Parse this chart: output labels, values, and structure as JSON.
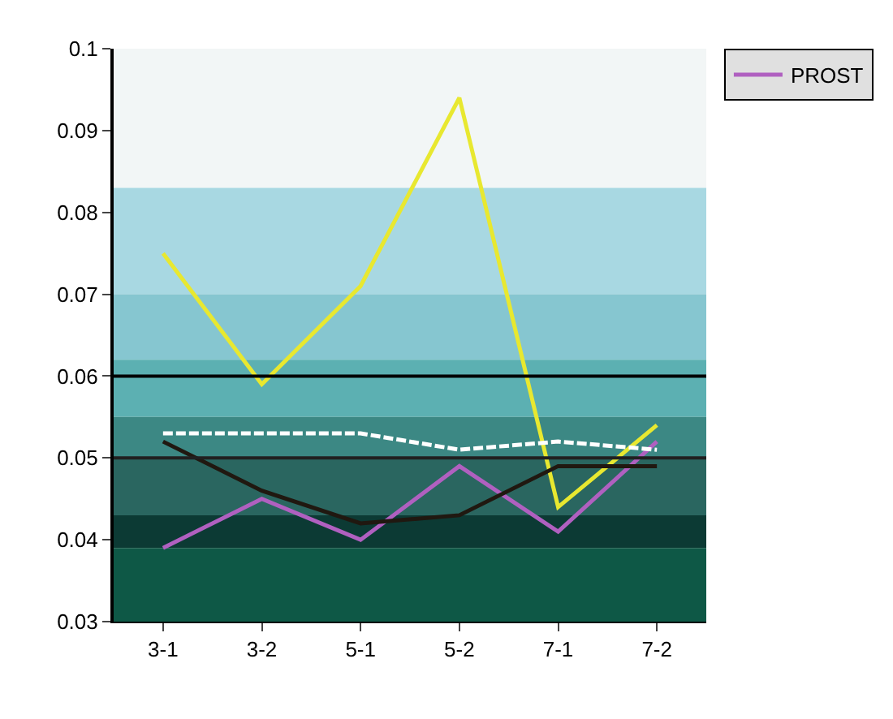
{
  "chart_data": {
    "type": "line",
    "categories": [
      "3-1",
      "3-2",
      "5-1",
      "5-2",
      "7-1",
      "7-2"
    ],
    "series": [
      {
        "name": "PROST",
        "color": "#b060c0",
        "values": [
          0.039,
          0.045,
          0.04,
          0.049,
          0.041,
          0.052
        ]
      },
      {
        "color": "#e8e830",
        "values": [
          0.075,
          0.059,
          0.071,
          0.094,
          0.044,
          0.054
        ]
      },
      {
        "color": "#201810",
        "values": [
          0.052,
          0.046,
          0.042,
          0.043,
          0.049,
          0.049
        ]
      },
      {
        "color": "#ffffff",
        "line_style": "dashed",
        "values": [
          0.053,
          0.053,
          0.053,
          0.051,
          0.052,
          0.051
        ]
      }
    ],
    "ylim": [
      0.03,
      0.1
    ],
    "yticks": [
      0.03,
      0.04,
      0.05,
      0.06,
      0.07,
      0.08,
      0.09,
      0.1
    ],
    "bands": [
      {
        "axis": "y",
        "from": 0.083,
        "to": 0.1,
        "color": "#f2f6f6"
      },
      {
        "axis": "y",
        "from": 0.07,
        "to": 0.083,
        "color": "#a8d8e2"
      },
      {
        "axis": "y",
        "from": 0.062,
        "to": 0.07,
        "color": "#86c6d0"
      },
      {
        "axis": "y",
        "from": 0.055,
        "to": 0.062,
        "color": "#5cb0b2"
      },
      {
        "axis": "y",
        "from": 0.05,
        "to": 0.055,
        "color": "#3c8884"
      },
      {
        "axis": "y",
        "from": 0.043,
        "to": 0.05,
        "color": "#2a6660"
      },
      {
        "axis": "y",
        "from": 0.039,
        "to": 0.043,
        "color": "#0c3a34"
      },
      {
        "axis": "y",
        "from": 0.03,
        "to": 0.039,
        "color": "#0e5846"
      }
    ],
    "ref_lines": [
      {
        "axis": "y",
        "value": 0.06,
        "color": "#000000"
      },
      {
        "axis": "y",
        "value": 0.05,
        "color": "#202020"
      }
    ],
    "grid": false,
    "legend": "right",
    "marker": "none",
    "line_style": "solid"
  }
}
